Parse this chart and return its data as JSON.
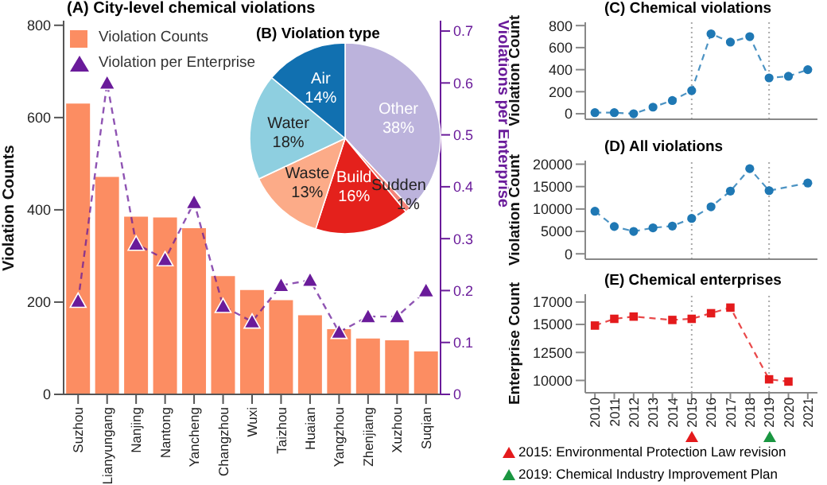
{
  "chart_data": [
    {
      "type": "bar",
      "title": "(A) City-level chemical violations",
      "categories": [
        "Suzhou",
        "Lianyungang",
        "Nanjing",
        "Nantong",
        "Yancheng",
        "Changzhou",
        "Wuxi",
        "Taizhou",
        "Huaian",
        "Yangzhou",
        "Zhenjiang",
        "Xuzhou",
        "Suqian"
      ],
      "ylabel": "Violation Counts",
      "y2label": "Violations per Enterprise",
      "ylim": [
        0,
        810
      ],
      "yticks": [
        0,
        200,
        400,
        600,
        800
      ],
      "y2lim": [
        0,
        0.72
      ],
      "y2ticks": [
        0,
        0.1,
        0.2,
        0.3,
        0.4,
        0.5,
        0.6,
        0.7
      ],
      "legend": "top left",
      "marker": "triangle",
      "line_style": "dashed",
      "series": [
        {
          "name": "Violation Counts",
          "color": "#fc8d62",
          "values": [
            632,
            473,
            387,
            385,
            362,
            258,
            228,
            206,
            173,
            143,
            123,
            119,
            95
          ]
        },
        {
          "name": "Violation per Enterprise",
          "type": "line",
          "axis": "y2",
          "color": "#6a1b9a",
          "values": [
            0.18,
            0.6,
            0.29,
            0.26,
            0.37,
            0.17,
            0.14,
            0.21,
            0.22,
            0.12,
            0.15,
            0.15,
            0.2
          ]
        }
      ]
    },
    {
      "type": "pie",
      "title": "(B) Violation type",
      "categories": [
        "Other",
        "Sudden",
        "Build",
        "Waste",
        "Water",
        "Air"
      ],
      "values": [
        38,
        1,
        16,
        13,
        18,
        14
      ],
      "value_labels": [
        "38%",
        "1%",
        "16%",
        "13%",
        "18%",
        "14%"
      ],
      "colors": [
        "#bcb3dc",
        "#f4837a",
        "#e4211c",
        "#fcab88",
        "#8ecfe0",
        "#1170b0"
      ]
    },
    {
      "type": "line",
      "title": "(C) Chemical violations",
      "ylabel": "Violation Count",
      "x": [
        2010,
        2011,
        2012,
        2013,
        2014,
        2015,
        2016,
        2017,
        2018,
        2019,
        2020,
        2021
      ],
      "xlim": [
        2009.5,
        2021.5
      ],
      "xticks": [
        2010,
        2011,
        2012,
        2013,
        2014,
        2015,
        2016,
        2017,
        2018,
        2019,
        2020,
        2021
      ],
      "ylim": [
        -50,
        830
      ],
      "yticks": [
        0,
        200,
        400,
        600,
        800
      ],
      "tick_labels": "y",
      "marker": "circle",
      "line_style": "dashed",
      "series": [
        {
          "color": "#1f78b4",
          "values": [
            10,
            10,
            0,
            60,
            120,
            210,
            725,
            650,
            700,
            325,
            340,
            400
          ]
        }
      ],
      "ref_lines": [
        {
          "axis": "x",
          "value": 2015,
          "color": "#aaaaaa",
          "line_style": "dotted"
        },
        {
          "axis": "x",
          "value": 2019,
          "color": "#aaaaaa",
          "line_style": "dotted"
        }
      ]
    },
    {
      "type": "line",
      "title": "(D) All violations",
      "ylabel": "Violation Count",
      "x": [
        2010,
        2011,
        2012,
        2013,
        2014,
        2015,
        2016,
        2017,
        2018,
        2019,
        2021
      ],
      "xlim": [
        2009.5,
        2021.5
      ],
      "xticks": [
        2010,
        2011,
        2012,
        2013,
        2014,
        2015,
        2016,
        2017,
        2018,
        2019,
        2020,
        2021
      ],
      "ylim": [
        -1200,
        20800
      ],
      "yticks": [
        0,
        5000,
        10000,
        15000,
        20000
      ],
      "tick_labels": "y",
      "marker": "circle",
      "line_style": "dashed",
      "series": [
        {
          "color": "#1f78b4",
          "values": [
            9500,
            6100,
            5000,
            5800,
            6200,
            7900,
            10500,
            14000,
            19000,
            14100,
            15800
          ]
        }
      ],
      "ref_lines": [
        {
          "axis": "x",
          "value": 2015,
          "color": "#aaaaaa",
          "line_style": "dotted"
        },
        {
          "axis": "x",
          "value": 2019,
          "color": "#aaaaaa",
          "line_style": "dotted"
        }
      ]
    },
    {
      "type": "line",
      "title": "(E) Chemical enterprises",
      "ylabel": "Enterprise Count",
      "x": [
        2010,
        2011,
        2012,
        2014,
        2015,
        2016,
        2017,
        2019,
        2020
      ],
      "xlim": [
        2009.5,
        2021.5
      ],
      "xticks": [
        2010,
        2011,
        2012,
        2013,
        2014,
        2015,
        2016,
        2017,
        2018,
        2019,
        2020,
        2021
      ],
      "ylim": [
        8900,
        17700
      ],
      "yticks": [
        10000,
        12500,
        15000,
        17000
      ],
      "marker": "square",
      "line_style": "dashed",
      "series": [
        {
          "color": "#e41a1c",
          "values": [
            14900,
            15500,
            15700,
            15400,
            15500,
            16000,
            16500,
            10100,
            9900
          ]
        }
      ],
      "ref_lines": [
        {
          "axis": "x",
          "value": 2015,
          "color": "#aaaaaa",
          "line_style": "dotted"
        },
        {
          "axis": "x",
          "value": 2019,
          "color": "#aaaaaa",
          "line_style": "dotted"
        }
      ],
      "annotations": [
        "2015: Environmental Protection Law revision",
        "2019: Chemical Industry Improvement Plan"
      ]
    }
  ]
}
